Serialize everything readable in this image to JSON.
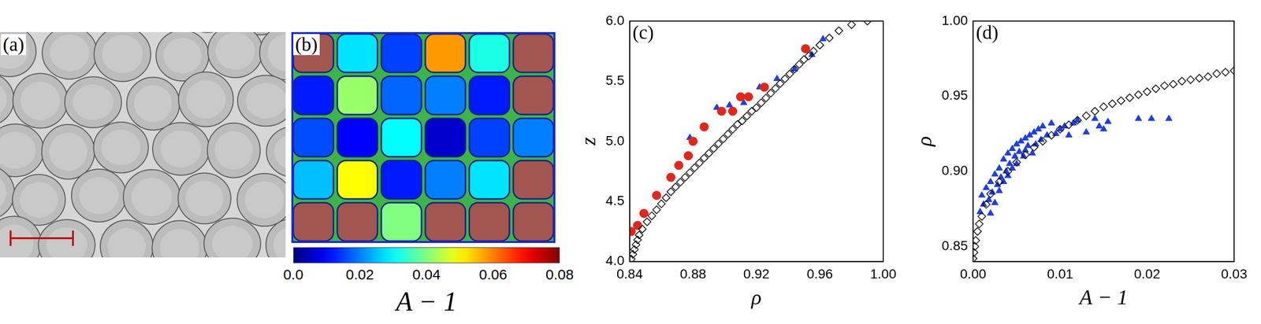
{
  "panels": [
    {
      "panel": "(a)",
      "type": "image"
    },
    {
      "panel": "(b)",
      "type": "cell_map",
      "cells": [
        [
          null,
          0.028,
          0.015,
          0.058,
          0.032,
          null
        ],
        [
          0.012,
          0.042,
          0.018,
          0.02,
          0.012,
          null
        ],
        [
          0.016,
          0.01,
          0.03,
          0.006,
          0.015,
          0.02
        ],
        [
          0.025,
          0.05,
          0.012,
          0.02,
          0.028,
          null
        ],
        [
          null,
          null,
          0.04,
          null,
          null,
          null
        ]
      ],
      "colorbar": {
        "range": [
          0,
          0.08
        ],
        "ticks": [
          {
            "value": 0,
            "label": "0.0"
          },
          0.02,
          0.04,
          0.06,
          0.08
        ],
        "label": "A − 1"
      }
    }
  ],
  "chart_data": [
    {
      "panel": "(c)",
      "type": "scatter",
      "x_label": "ρ",
      "y_label": "z",
      "xlim": [
        0.84,
        1.0
      ],
      "xticks": [
        0.84,
        0.88,
        0.92,
        0.96,
        {
          "value": 1.0,
          "label": "1.00"
        }
      ],
      "ylim": [
        4.0,
        6.0
      ],
      "yticks": [
        {
          "value": 4,
          "label": "4.0"
        },
        4.5,
        {
          "value": 5,
          "label": "5.0"
        },
        5.5,
        {
          "value": 6,
          "label": "6.0"
        }
      ],
      "grid": false,
      "series": [
        {
          "marker": "open_diamond",
          "color": "#000000",
          "x": [
            0.841,
            0.842,
            0.843,
            0.844,
            0.845,
            0.846,
            0.848,
            0.851,
            0.854,
            0.857,
            0.86,
            0.863,
            0.866,
            0.869,
            0.872,
            0.875,
            0.878,
            0.881,
            0.884,
            0.887,
            0.89,
            0.893,
            0.896,
            0.899,
            0.902,
            0.905,
            0.908,
            0.911,
            0.914,
            0.917,
            0.92,
            0.923,
            0.926,
            0.929,
            0.932,
            0.935,
            0.938,
            0.941,
            0.944,
            0.947,
            0.95,
            0.953,
            0.956,
            0.96,
            0.966,
            0.972,
            0.98,
            0.99
          ],
          "y": [
            4.02,
            4.06,
            4.1,
            4.14,
            4.18,
            4.22,
            4.27,
            4.33,
            4.38,
            4.43,
            4.48,
            4.53,
            4.58,
            4.62,
            4.66,
            4.7,
            4.74,
            4.78,
            4.82,
            4.86,
            4.9,
            4.94,
            4.98,
            5.02,
            5.06,
            5.1,
            5.14,
            5.17,
            5.21,
            5.25,
            5.28,
            5.32,
            5.36,
            5.4,
            5.44,
            5.48,
            5.52,
            5.56,
            5.6,
            5.64,
            5.68,
            5.71,
            5.75,
            5.8,
            5.86,
            5.92,
            5.97,
            6.0
          ]
        },
        {
          "marker": "circle",
          "color": "#e3261c",
          "x": [
            0.841,
            0.845,
            0.849,
            0.857,
            0.866,
            0.871,
            0.877,
            0.88,
            0.887,
            0.898,
            0.905,
            0.91,
            0.915,
            0.925,
            0.951
          ],
          "y": [
            4.25,
            4.3,
            4.4,
            4.55,
            4.7,
            4.8,
            4.88,
            5.0,
            5.12,
            5.25,
            5.25,
            5.37,
            5.37,
            5.45,
            5.77
          ]
        },
        {
          "marker": "triangle",
          "color": "#1f3fe0",
          "x": [
            0.878,
            0.895,
            0.903,
            0.912,
            0.922,
            0.933,
            0.944,
            0.955,
            0.962
          ],
          "y": [
            5.03,
            5.28,
            5.3,
            5.32,
            5.45,
            5.52,
            5.6,
            5.72,
            5.85
          ]
        }
      ]
    },
    {
      "panel": "(d)",
      "type": "scatter",
      "x_label": "A − 1",
      "y_label": "ρ",
      "xlim": [
        0,
        0.03
      ],
      "xticks": [
        {
          "value": 0,
          "label": "0.00"
        },
        0.01,
        0.02,
        0.03
      ],
      "ylim": [
        0.84,
        1.0
      ],
      "yticks": [
        0.85,
        {
          "value": 0.9,
          "label": "0.90"
        },
        0.95,
        {
          "value": 1.0,
          "label": "1.00"
        }
      ],
      "grid": false,
      "series": [
        {
          "marker": "open_diamond",
          "color": "#000000",
          "x": [
            0,
            0.0001,
            0.0002,
            0.0003,
            0.0005,
            0.0007,
            0.001,
            0.0015,
            0.002,
            0.003,
            0.004,
            0.005,
            0.006,
            0.007,
            0.008,
            0.009,
            0.01,
            0.011,
            0.012,
            0.013,
            0.014,
            0.015,
            0.016,
            0.017,
            0.018,
            0.019,
            0.02,
            0.021,
            0.022,
            0.023,
            0.024,
            0.025,
            0.026,
            0.027,
            0.028,
            0.029,
            0.03
          ],
          "y": [
            0.842,
            0.846,
            0.85,
            0.854,
            0.86,
            0.865,
            0.87,
            0.878,
            0.885,
            0.893,
            0.9,
            0.906,
            0.911,
            0.916,
            0.92,
            0.924,
            0.928,
            0.931,
            0.934,
            0.937,
            0.94,
            0.943,
            0.945,
            0.947,
            0.949,
            0.951,
            0.953,
            0.955,
            0.957,
            0.958,
            0.96,
            0.961,
            0.962,
            0.963,
            0.965,
            0.966,
            0.967
          ]
        },
        {
          "marker": "triangle",
          "color": "#1f3fe0",
          "x": [
            0.0008,
            0.001,
            0.0012,
            0.0015,
            0.0018,
            0.002,
            0.002,
            0.0022,
            0.0025,
            0.0025,
            0.0028,
            0.003,
            0.003,
            0.0032,
            0.0035,
            0.0035,
            0.0038,
            0.004,
            0.004,
            0.0042,
            0.0045,
            0.0045,
            0.0048,
            0.005,
            0.005,
            0.0053,
            0.0055,
            0.0058,
            0.006,
            0.006,
            0.0063,
            0.0065,
            0.0068,
            0.007,
            0.0072,
            0.0075,
            0.0078,
            0.008,
            0.0085,
            0.009,
            0.0095,
            0.01,
            0.0105,
            0.011,
            0.0115,
            0.012,
            0.013,
            0.014,
            0.0145,
            0.015,
            0.0155,
            0.019,
            0.0205,
            0.0225
          ],
          "y": [
            0.873,
            0.884,
            0.878,
            0.889,
            0.881,
            0.872,
            0.893,
            0.886,
            0.898,
            0.879,
            0.891,
            0.902,
            0.887,
            0.896,
            0.908,
            0.893,
            0.9,
            0.912,
            0.897,
            0.905,
            0.915,
            0.902,
            0.91,
            0.918,
            0.905,
            0.913,
            0.92,
            0.91,
            0.922,
            0.914,
            0.917,
            0.924,
            0.912,
            0.926,
            0.918,
            0.928,
            0.921,
            0.93,
            0.924,
            0.932,
            0.925,
            0.928,
            0.93,
            0.924,
            0.932,
            0.934,
            0.926,
            0.935,
            0.93,
            0.928,
            0.933,
            0.935,
            0.935,
            0.935
          ]
        }
      ]
    }
  ]
}
